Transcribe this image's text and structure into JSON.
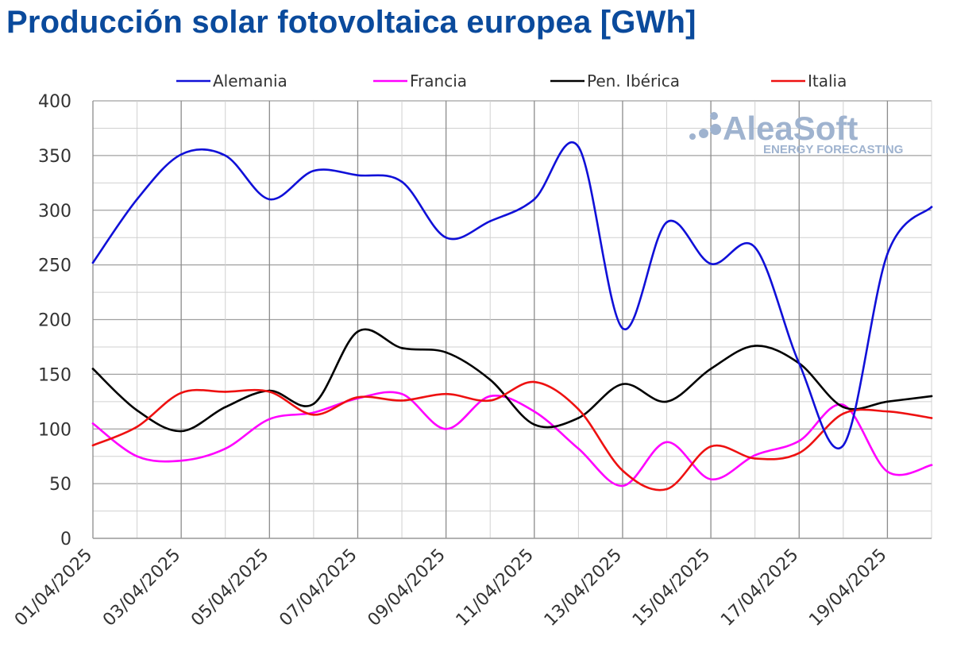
{
  "chart_data": {
    "type": "line",
    "title": "Producción solar fotovoltaica europea [GWh]",
    "xlabel": "",
    "ylabel": "",
    "ylim": [
      0,
      400
    ],
    "yticks": [
      "0",
      "50",
      "100",
      "150",
      "200",
      "250",
      "300",
      "350",
      "400"
    ],
    "xticks": [
      "01/04/2025",
      "03/04/2025",
      "05/04/2025",
      "07/04/2025",
      "09/04/2025",
      "11/04/2025",
      "13/04/2025",
      "15/04/2025",
      "17/04/2025",
      "19/04/2025"
    ],
    "x": [
      "01/04/2025",
      "02/04/2025",
      "03/04/2025",
      "04/04/2025",
      "05/04/2025",
      "06/04/2025",
      "07/04/2025",
      "08/04/2025",
      "09/04/2025",
      "10/04/2025",
      "11/04/2025",
      "12/04/2025",
      "13/04/2025",
      "14/04/2025",
      "15/04/2025",
      "16/04/2025",
      "17/04/2025",
      "18/04/2025",
      "19/04/2025",
      "20/04/2025"
    ],
    "grid": true,
    "legend_position": "top",
    "series": [
      {
        "name": "Alemania",
        "color": "#1010d8",
        "values": [
          252,
          310,
          351,
          350,
          310,
          336,
          332,
          326,
          275,
          290,
          310,
          358,
          192,
          289,
          251,
          266,
          160,
          85,
          260,
          303
        ]
      },
      {
        "name": "Francia",
        "color": "#ff00ff",
        "values": [
          105,
          75,
          71,
          82,
          109,
          115,
          128,
          132,
          100,
          130,
          116,
          82,
          48,
          88,
          54,
          76,
          89,
          122,
          61,
          67
        ]
      },
      {
        "name": "Pen. Ibérica",
        "color": "#000000",
        "values": [
          155,
          117,
          98,
          120,
          135,
          123,
          189,
          174,
          170,
          145,
          104,
          110,
          141,
          125,
          155,
          176,
          160,
          120,
          125,
          130
        ]
      },
      {
        "name": "Italia",
        "color": "#ee1111",
        "values": [
          85,
          102,
          133,
          134,
          134,
          113,
          129,
          126,
          132,
          126,
          143,
          118,
          62,
          45,
          84,
          73,
          78,
          114,
          116,
          110
        ]
      }
    ]
  },
  "watermark": {
    "brand": "AleaSoft",
    "tagline": "ENERGY FORECASTING"
  }
}
